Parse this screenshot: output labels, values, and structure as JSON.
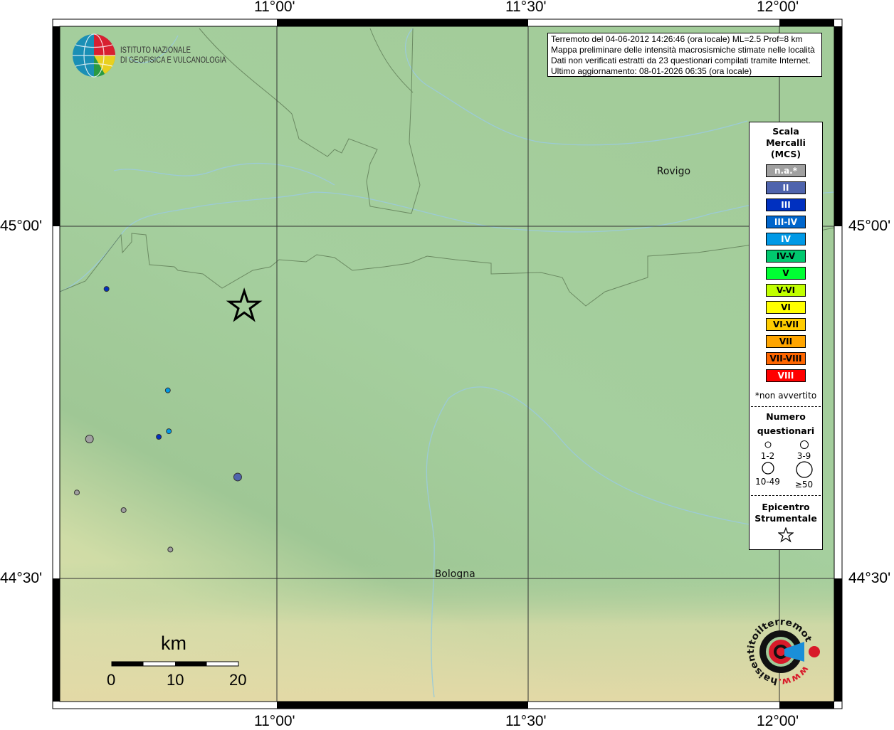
{
  "map": {
    "extent": {
      "lon": [
        10.583,
        12.108
      ],
      "lat": [
        44.264,
        45.283
      ]
    },
    "lon_ticks": [
      {
        "value": 11.0,
        "label": "11°00'"
      },
      {
        "value": 11.5,
        "label": "11°30'"
      },
      {
        "value": 12.0,
        "label": "12°00'"
      }
    ],
    "lat_ticks": [
      {
        "value": 45.0,
        "label": "45°00'"
      },
      {
        "value": 44.5,
        "label": "44°30'"
      }
    ],
    "colors": {
      "lowland": "#a3cd9c",
      "hills": "#e2deae",
      "border": "#6b8a62",
      "river": "#9ccbd6"
    }
  },
  "logo": {
    "line1": "ISTITUTO NAZIONALE",
    "line2": "DI GEOFISICA E VULCANOLOGIA"
  },
  "info": {
    "line1": "Terremoto del 04-06-2012 14:26:46 (ora locale) ML=2.5 Prof=8 km",
    "line2": "Mappa preliminare delle intensità macrosismiche stimate nelle località",
    "line3": "Dati non verificati estratti da 23 questionari compilati tramite Internet.",
    "line4": "Ultimo aggiornamento: 08-01-2026 06:35 (ora locale)"
  },
  "places": [
    {
      "name": "Rovigo",
      "lon": 11.79,
      "lat": 45.074
    },
    {
      "name": "Bologna",
      "lon": 11.348,
      "lat": 44.502
    }
  ],
  "epicenter": {
    "lon": 10.935,
    "lat": 44.886
  },
  "points": [
    {
      "lon": 10.661,
      "lat": 44.911,
      "intensity": "III",
      "size": "1-2"
    },
    {
      "lon": 10.783,
      "lat": 44.767,
      "intensity": "IV",
      "size": "1-2"
    },
    {
      "lon": 10.785,
      "lat": 44.709,
      "intensity": "IV",
      "size": "1-2"
    },
    {
      "lon": 10.765,
      "lat": 44.701,
      "intensity": "III",
      "size": "1-2"
    },
    {
      "lon": 10.627,
      "lat": 44.698,
      "intensity": "n.a.*",
      "size": "3-9"
    },
    {
      "lon": 10.922,
      "lat": 44.644,
      "intensity": "II",
      "size": "3-9"
    },
    {
      "lon": 10.602,
      "lat": 44.622,
      "intensity": "n.a.*",
      "size": "1-2"
    },
    {
      "lon": 10.695,
      "lat": 44.597,
      "intensity": "n.a.*",
      "size": "1-2"
    },
    {
      "lon": 10.788,
      "lat": 44.541,
      "intensity": "n.a.*",
      "size": "1-2"
    }
  ],
  "legend": {
    "title1": "Scala",
    "title2": "Mercalli",
    "title3": "(MCS)",
    "items": [
      {
        "label": "n.a.*",
        "color": "#a0a0a0",
        "text": "#ffffff"
      },
      {
        "label": "II",
        "color": "#4f64ad",
        "text": "#ffffff"
      },
      {
        "label": "III",
        "color": "#0030c0",
        "text": "#ffffff"
      },
      {
        "label": "III-IV",
        "color": "#0066cc",
        "text": "#ffffff"
      },
      {
        "label": "IV",
        "color": "#0099e6",
        "text": "#ffffff"
      },
      {
        "label": "IV-V",
        "color": "#00c86e",
        "text": "#000000"
      },
      {
        "label": "V",
        "color": "#00ff33",
        "text": "#000000"
      },
      {
        "label": "V-VI",
        "color": "#c0ff00",
        "text": "#000000"
      },
      {
        "label": "VI",
        "color": "#ffff00",
        "text": "#000000"
      },
      {
        "label": "VI-VII",
        "color": "#ffcc00",
        "text": "#000000"
      },
      {
        "label": "VII",
        "color": "#ffa500",
        "text": "#000000"
      },
      {
        "label": "VII-VIII",
        "color": "#ff6600",
        "text": "#000000"
      },
      {
        "label": "VIII",
        "color": "#ff0000",
        "text": "#ffffff"
      }
    ],
    "note": "*non avvertito",
    "count_title1": "Numero",
    "count_title2": "questionari",
    "counts": [
      "1-2",
      "3-9",
      "10-49",
      "≥50"
    ],
    "epi_title1": "Epicentro",
    "epi_title2": "Strumentale"
  },
  "scale_bar": {
    "unit": "km",
    "labels": [
      "0",
      "10",
      "20"
    ]
  },
  "haisentito": {
    "text": "haisentitoilterremoto.it",
    "www": "www."
  }
}
